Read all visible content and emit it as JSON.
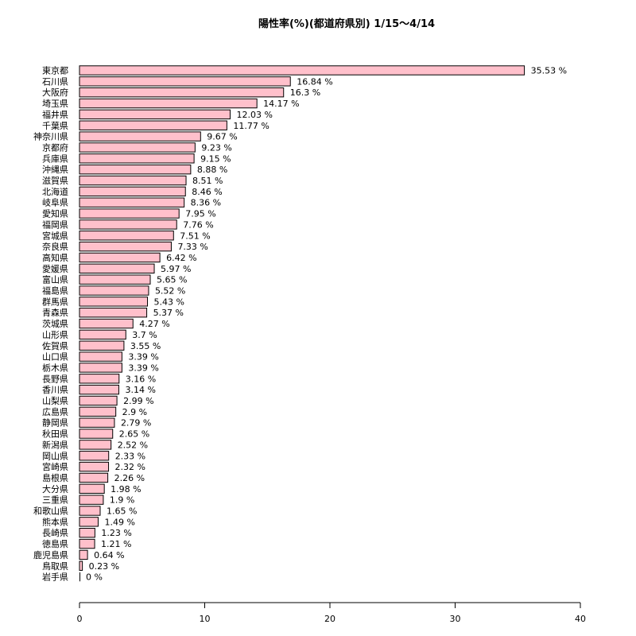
{
  "chart_data": {
    "type": "bar",
    "orientation": "horizontal",
    "title": "陽性率(%)(都道府県別) 1/15〜4/14",
    "value_suffix": " %",
    "bar_color": "#ffc0cb",
    "bar_border_color": "#000000",
    "xlim": [
      0,
      40
    ],
    "xticks": [
      0,
      10,
      20,
      30,
      40
    ],
    "grid": false,
    "categories": [
      "東京都",
      "石川県",
      "大阪府",
      "埼玉県",
      "福井県",
      "千葉県",
      "神奈川県",
      "京都府",
      "兵庫県",
      "沖縄県",
      "滋賀県",
      "北海道",
      "岐阜県",
      "愛知県",
      "福岡県",
      "宮城県",
      "奈良県",
      "高知県",
      "愛媛県",
      "富山県",
      "福島県",
      "群馬県",
      "青森県",
      "茨城県",
      "山形県",
      "佐賀県",
      "山口県",
      "栃木県",
      "長野県",
      "香川県",
      "山梨県",
      "広島県",
      "静岡県",
      "秋田県",
      "新潟県",
      "岡山県",
      "宮崎県",
      "島根県",
      "大分県",
      "三重県",
      "和歌山県",
      "熊本県",
      "長崎県",
      "徳島県",
      "鹿児島県",
      "鳥取県",
      "岩手県"
    ],
    "values": [
      35.53,
      16.84,
      16.3,
      14.17,
      12.03,
      11.77,
      9.67,
      9.23,
      9.15,
      8.88,
      8.51,
      8.46,
      8.36,
      7.95,
      7.76,
      7.51,
      7.33,
      6.42,
      5.97,
      5.65,
      5.52,
      5.43,
      5.37,
      4.27,
      3.7,
      3.55,
      3.39,
      3.39,
      3.16,
      3.14,
      2.99,
      2.9,
      2.79,
      2.65,
      2.52,
      2.33,
      2.32,
      2.26,
      1.98,
      1.9,
      1.65,
      1.49,
      1.23,
      1.21,
      0.64,
      0.23,
      0
    ],
    "value_labels": [
      "35.53 %",
      "16.84 %",
      "16.3 %",
      "14.17 %",
      "12.03 %",
      "11.77 %",
      "9.67 %",
      "9.23 %",
      "9.15 %",
      "8.88 %",
      "8.51 %",
      "8.46 %",
      "8.36 %",
      "7.95 %",
      "7.76 %",
      "7.51 %",
      "7.33 %",
      "6.42 %",
      "5.97 %",
      "5.65 %",
      "5.52 %",
      "5.43 %",
      "5.37 %",
      "4.27 %",
      "3.7 %",
      "3.55 %",
      "3.39 %",
      "3.39 %",
      "3.16 %",
      "3.14 %",
      "2.99 %",
      "2.9 %",
      "2.79 %",
      "2.65 %",
      "2.52 %",
      "2.33 %",
      "2.32 %",
      "2.26 %",
      "1.98 %",
      "1.9 %",
      "1.65 %",
      "1.49 %",
      "1.23 %",
      "1.21 %",
      "0.64 %",
      "0.23 %",
      "0 %"
    ]
  }
}
